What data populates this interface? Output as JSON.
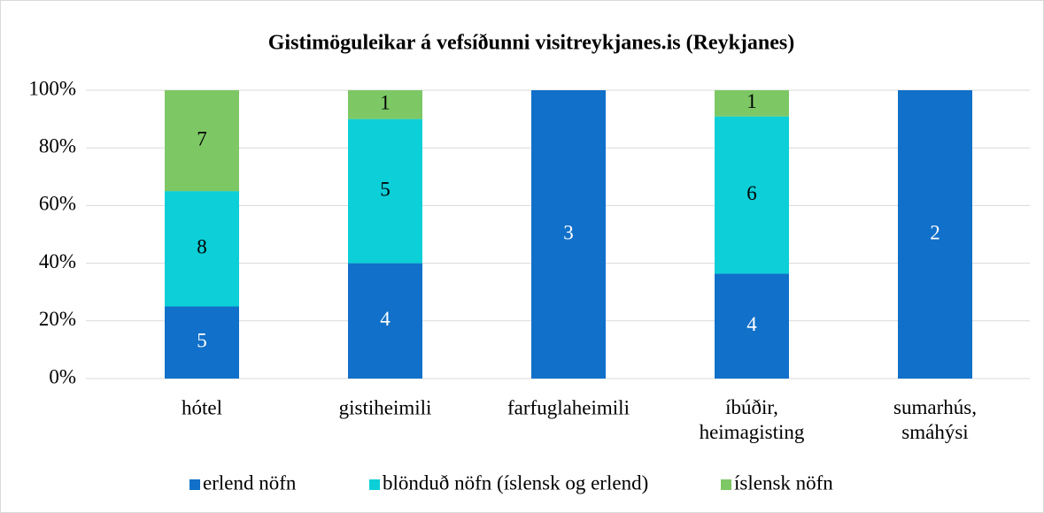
{
  "chart_data": {
    "type": "bar",
    "stacking": "percent",
    "title": "Gistimöguleikar á vefsíðunni visitreykjanes.is (Reykjanes)",
    "categories": [
      "hótel",
      "gistiheimili",
      "farfuglaheimili",
      "íbúðir, heimagisting",
      "sumarhús, smáhýsi"
    ],
    "series": [
      {
        "name": "erlend nöfn",
        "color": "#1170c9",
        "values": [
          5,
          4,
          3,
          4,
          2
        ]
      },
      {
        "name": "blönduð nöfn (íslensk og erlend)",
        "color": "#0ccfd8",
        "values": [
          8,
          5,
          0,
          6,
          0
        ]
      },
      {
        "name": "íslensk nöfn",
        "color": "#7dc865",
        "values": [
          7,
          1,
          0,
          1,
          0
        ]
      }
    ],
    "ylim": [
      0,
      100
    ],
    "yticks": [
      {
        "value": 0,
        "label": "0%"
      },
      {
        "value": 20,
        "label": "20%"
      },
      {
        "value": 40,
        "label": "40%"
      },
      {
        "value": 60,
        "label": "60%"
      },
      {
        "value": 80,
        "label": "80%"
      },
      {
        "value": 100,
        "label": "100%"
      }
    ],
    "grid": true,
    "legend": "bottom"
  }
}
